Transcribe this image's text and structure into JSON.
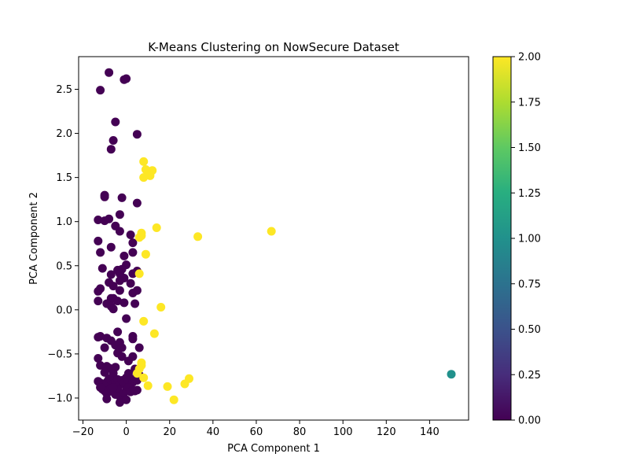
{
  "chart_data": {
    "type": "scatter",
    "title": "K-Means Clustering on NowSecure Dataset",
    "xlabel": "PCA Component 1",
    "ylabel": "PCA Component 2",
    "xlim": [
      -22,
      158
    ],
    "ylim": [
      -1.25,
      2.87
    ],
    "xticks": [
      -20,
      0,
      20,
      40,
      60,
      80,
      100,
      120,
      140
    ],
    "yticks": [
      -1.0,
      -0.5,
      0.0,
      0.5,
      1.0,
      1.5,
      2.0,
      2.5
    ],
    "grid": false,
    "colorbar": {
      "range": [
        0.0,
        2.0
      ],
      "ticks": [
        "0.00",
        "0.25",
        "0.50",
        "0.75",
        "1.00",
        "1.25",
        "1.50",
        "1.75",
        "2.00"
      ],
      "colormap": "viridis"
    },
    "series": [
      {
        "cluster": 0,
        "color": "#440154",
        "points": [
          [
            -8,
            2.69
          ],
          [
            -12,
            2.49
          ],
          [
            0,
            2.62
          ],
          [
            -1,
            2.61
          ],
          [
            -5,
            2.13
          ],
          [
            5,
            1.99
          ],
          [
            -6,
            1.92
          ],
          [
            -7,
            1.82
          ],
          [
            -10,
            1.3
          ],
          [
            -10,
            1.28
          ],
          [
            -2,
            1.27
          ],
          [
            5,
            1.21
          ],
          [
            -13,
            1.02
          ],
          [
            -3,
            1.08
          ],
          [
            -8,
            1.03
          ],
          [
            -10,
            1.01
          ],
          [
            -5,
            0.95
          ],
          [
            -3,
            0.89
          ],
          [
            -13,
            0.78
          ],
          [
            2,
            0.85
          ],
          [
            -7,
            0.71
          ],
          [
            -12,
            0.65
          ],
          [
            3,
            0.76
          ],
          [
            3,
            0.65
          ],
          [
            -1,
            0.61
          ],
          [
            -11,
            0.47
          ],
          [
            0,
            0.51
          ],
          [
            -2,
            0.46
          ],
          [
            -3,
            0.41
          ],
          [
            -4,
            0.45
          ],
          [
            -7,
            0.4
          ],
          [
            -8,
            0.31
          ],
          [
            3,
            0.41
          ],
          [
            5,
            0.44
          ],
          [
            -1,
            0.36
          ],
          [
            -3,
            0.33
          ],
          [
            2,
            0.3
          ],
          [
            -12,
            0.24
          ],
          [
            -13,
            0.21
          ],
          [
            -6,
            0.27
          ],
          [
            -3,
            0.22
          ],
          [
            5,
            0.22
          ],
          [
            3,
            0.19
          ],
          [
            -7,
            0.13
          ],
          [
            -6,
            0.13
          ],
          [
            -13,
            0.1
          ],
          [
            -4,
            0.1
          ],
          [
            -1,
            0.08
          ],
          [
            4,
            0.07
          ],
          [
            -9,
            0.07
          ],
          [
            -7,
            0.04
          ],
          [
            -6,
            0.01
          ],
          [
            0,
            -0.1
          ],
          [
            -13,
            -0.31
          ],
          [
            -12,
            -0.3
          ],
          [
            -9,
            -0.32
          ],
          [
            -4,
            -0.25
          ],
          [
            3,
            -0.3
          ],
          [
            3,
            -0.33
          ],
          [
            -7,
            -0.35
          ],
          [
            -5,
            -0.4
          ],
          [
            -3,
            -0.37
          ],
          [
            -10,
            -0.43
          ],
          [
            -2,
            -0.43
          ],
          [
            6,
            -0.43
          ],
          [
            -4,
            -0.49
          ],
          [
            -2,
            -0.53
          ],
          [
            3,
            -0.53
          ],
          [
            1,
            -0.58
          ],
          [
            -13,
            -0.55
          ],
          [
            -12,
            -0.63
          ],
          [
            -9,
            -0.64
          ],
          [
            -8,
            -0.66
          ],
          [
            -5,
            -0.65
          ],
          [
            -10,
            -0.71
          ],
          [
            -6,
            -0.72
          ],
          [
            1,
            -0.72
          ],
          [
            4,
            -0.67
          ],
          [
            5,
            -0.7
          ],
          [
            6,
            -0.74
          ],
          [
            -13,
            -0.81
          ],
          [
            -12,
            -0.83
          ],
          [
            -11,
            -0.86
          ],
          [
            -10,
            -0.85
          ],
          [
            -9,
            -0.82
          ],
          [
            -8,
            -0.78
          ],
          [
            -7,
            -0.8
          ],
          [
            -6,
            -0.84
          ],
          [
            -5,
            -0.83
          ],
          [
            -4,
            -0.79
          ],
          [
            -3,
            -0.85
          ],
          [
            -2,
            -0.8
          ],
          [
            -1,
            -0.83
          ],
          [
            0,
            -0.77
          ],
          [
            1,
            -0.8
          ],
          [
            2,
            -0.86
          ],
          [
            3,
            -0.82
          ],
          [
            4,
            -0.78
          ],
          [
            5,
            -0.8
          ],
          [
            -11,
            -0.9
          ],
          [
            -10,
            -0.92
          ],
          [
            -9,
            -0.95
          ],
          [
            -8,
            -0.91
          ],
          [
            -7,
            -0.89
          ],
          [
            -6,
            -0.93
          ],
          [
            -5,
            -0.96
          ],
          [
            -4,
            -0.9
          ],
          [
            -3,
            -0.98
          ],
          [
            -2,
            -1.02
          ],
          [
            -1,
            -0.94
          ],
          [
            0,
            -0.91
          ],
          [
            1,
            -0.88
          ],
          [
            2,
            -0.93
          ],
          [
            4,
            -0.92
          ],
          [
            -9,
            -1.01
          ],
          [
            -3,
            -1.05
          ],
          [
            0,
            -1.02
          ],
          [
            5,
            -0.91
          ],
          [
            -12,
            -0.88
          ],
          [
            -6,
            -0.88
          ]
        ]
      },
      {
        "cluster": 1,
        "color": "#21918c",
        "points": [
          [
            150,
            -0.73
          ]
        ]
      },
      {
        "cluster": 2,
        "color": "#fde725",
        "points": [
          [
            8,
            1.68
          ],
          [
            10,
            1.57
          ],
          [
            9,
            1.59
          ],
          [
            12,
            1.58
          ],
          [
            11,
            1.52
          ],
          [
            8,
            1.5
          ],
          [
            14,
            0.93
          ],
          [
            7,
            0.87
          ],
          [
            7,
            0.84
          ],
          [
            6,
            0.82
          ],
          [
            33,
            0.83
          ],
          [
            67,
            0.89
          ],
          [
            9,
            0.63
          ],
          [
            6,
            0.41
          ],
          [
            16,
            0.03
          ],
          [
            8,
            -0.13
          ],
          [
            13,
            -0.27
          ],
          [
            7,
            -0.6
          ],
          [
            7,
            -0.63
          ],
          [
            5,
            -0.72
          ],
          [
            6,
            -0.67
          ],
          [
            8,
            -0.77
          ],
          [
            10,
            -0.86
          ],
          [
            19,
            -0.87
          ],
          [
            27,
            -0.84
          ],
          [
            29,
            -0.78
          ],
          [
            22,
            -1.02
          ]
        ]
      }
    ]
  }
}
